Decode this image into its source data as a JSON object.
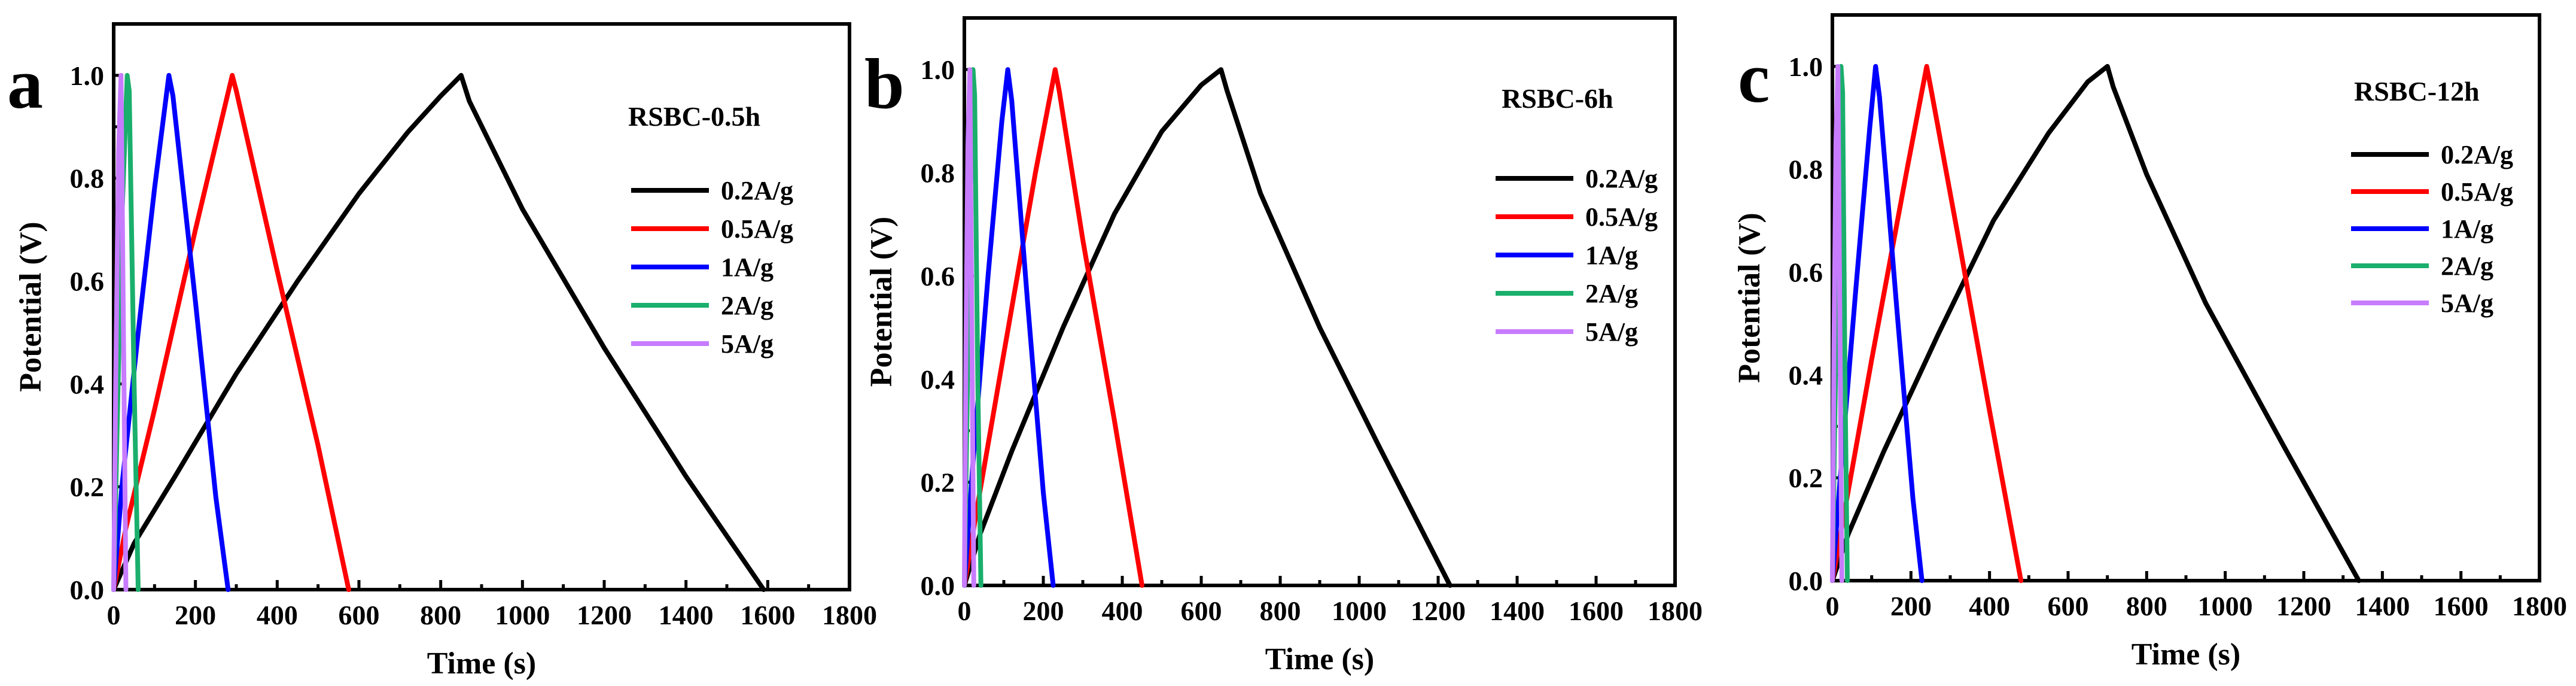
{
  "chart_data": [
    {
      "type": "line",
      "panel_label": "a",
      "sample_label": "RSBC-0.5h",
      "xlabel": "Time (s)",
      "ylabel": "Potential (V)",
      "xlim": [
        0,
        1800
      ],
      "ylim": [
        0,
        1.1
      ],
      "xticks": [
        0,
        200,
        400,
        600,
        800,
        1000,
        1200,
        1400,
        1600,
        1800
      ],
      "yticks": [
        0.0,
        0.2,
        0.4,
        0.6,
        0.8,
        1.0
      ],
      "xtick_labels": [
        "0",
        "200",
        "400",
        "600",
        "800",
        "1000",
        "1200",
        "1400",
        "1600",
        "1800"
      ],
      "ytick_labels": [
        "0.0",
        "0.2",
        "0.4",
        "0.6",
        "0.8",
        "1.0"
      ],
      "legend_position": "right",
      "series": [
        {
          "name": "0.2A/g",
          "color": "#000000",
          "x": [
            0,
            50,
            150,
            300,
            450,
            600,
            720,
            800,
            850,
            870,
            1000,
            1200,
            1400,
            1590
          ],
          "y": [
            0.0,
            0.09,
            0.22,
            0.42,
            0.6,
            0.77,
            0.89,
            0.96,
            1.0,
            0.95,
            0.74,
            0.47,
            0.22,
            0.0
          ]
        },
        {
          "name": "0.5A/g",
          "color": "#ff0000",
          "x": [
            0,
            30,
            100,
            200,
            290,
            300,
            400,
            500,
            575
          ],
          "y": [
            0.0,
            0.12,
            0.35,
            0.7,
            1.0,
            0.97,
            0.62,
            0.28,
            0.0
          ]
        },
        {
          "name": "1A/g",
          "color": "#0000ff",
          "x": [
            0,
            20,
            60,
            100,
            135,
            145,
            200,
            250,
            280
          ],
          "y": [
            0.0,
            0.2,
            0.5,
            0.78,
            1.0,
            0.96,
            0.56,
            0.18,
            0.0
          ]
        },
        {
          "name": "2A/g",
          "color": "#1aaf6c",
          "x": [
            0,
            8,
            20,
            33,
            38,
            50,
            60
          ],
          "y": [
            0.0,
            0.3,
            0.72,
            1.0,
            0.97,
            0.4,
            0.0
          ]
        },
        {
          "name": "5A/g",
          "color": "#c77cff",
          "x": [
            0,
            5,
            12,
            18,
            24,
            30
          ],
          "y": [
            0.0,
            0.4,
            0.85,
            1.0,
            0.5,
            0.0
          ]
        }
      ]
    },
    {
      "type": "line",
      "panel_label": "b",
      "sample_label": "RSBC-6h",
      "xlabel": "Time (s)",
      "ylabel": "Potential (V)",
      "xlim": [
        0,
        1800
      ],
      "ylim": [
        0,
        1.1
      ],
      "xticks": [
        0,
        200,
        400,
        600,
        800,
        1000,
        1200,
        1400,
        1600,
        1800
      ],
      "yticks": [
        0.0,
        0.2,
        0.4,
        0.6,
        0.8,
        1.0
      ],
      "xtick_labels": [
        "0",
        "200",
        "400",
        "600",
        "800",
        "1000",
        "1200",
        "1400",
        "1600",
        "1800"
      ],
      "ytick_labels": [
        "0.0",
        "0.2",
        "0.4",
        "0.6",
        "0.8",
        "1.0"
      ],
      "legend_position": "right",
      "series": [
        {
          "name": "0.2A/g",
          "color": "#000000",
          "x": [
            0,
            40,
            120,
            250,
            380,
            500,
            600,
            650,
            665,
            750,
            900,
            1050,
            1230
          ],
          "y": [
            0.0,
            0.1,
            0.26,
            0.5,
            0.72,
            0.88,
            0.97,
            1.0,
            0.96,
            0.76,
            0.5,
            0.27,
            0.0
          ]
        },
        {
          "name": "0.5A/g",
          "color": "#ff0000",
          "x": [
            0,
            30,
            100,
            180,
            230,
            240,
            300,
            380,
            450
          ],
          "y": [
            0.0,
            0.14,
            0.45,
            0.8,
            1.0,
            0.96,
            0.67,
            0.32,
            0.0
          ]
        },
        {
          "name": "1A/g",
          "color": "#0000ff",
          "x": [
            0,
            20,
            60,
            95,
            110,
            120,
            160,
            200,
            225
          ],
          "y": [
            0.0,
            0.22,
            0.6,
            0.9,
            1.0,
            0.94,
            0.55,
            0.18,
            0.0
          ]
        },
        {
          "name": "2A/g",
          "color": "#1aaf6c",
          "x": [
            0,
            6,
            14,
            22,
            26,
            34,
            42
          ],
          "y": [
            0.0,
            0.3,
            0.7,
            1.0,
            0.95,
            0.4,
            0.0
          ]
        },
        {
          "name": "5A/g",
          "color": "#c77cff",
          "x": [
            0,
            4,
            9,
            14,
            19,
            24
          ],
          "y": [
            0.0,
            0.45,
            0.85,
            1.0,
            0.5,
            0.0
          ]
        }
      ]
    },
    {
      "type": "line",
      "panel_label": "c",
      "sample_label": "RSBC-12h",
      "xlabel": "Time (s)",
      "ylabel": "Potential (V)",
      "xlim": [
        0,
        1800
      ],
      "ylim": [
        0,
        1.1
      ],
      "xticks": [
        0,
        200,
        400,
        600,
        800,
        1000,
        1200,
        1400,
        1600,
        1800
      ],
      "yticks": [
        0.0,
        0.2,
        0.4,
        0.6,
        0.8,
        1.0
      ],
      "xtick_labels": [
        "0",
        "200",
        "400",
        "600",
        "800",
        "1000",
        "1200",
        "1400",
        "1600",
        "1800"
      ],
      "ytick_labels": [
        "0.0",
        "0.2",
        "0.4",
        "0.6",
        "0.8",
        "1.0"
      ],
      "legend_position": "right",
      "series": [
        {
          "name": "0.2A/g",
          "color": "#000000",
          "x": [
            0,
            40,
            130,
            270,
            410,
            550,
            650,
            700,
            715,
            800,
            950,
            1150,
            1340
          ],
          "y": [
            0.0,
            0.09,
            0.25,
            0.48,
            0.7,
            0.87,
            0.97,
            1.0,
            0.96,
            0.79,
            0.54,
            0.26,
            0.0
          ]
        },
        {
          "name": "0.5A/g",
          "color": "#ff0000",
          "x": [
            0,
            30,
            100,
            190,
            240,
            250,
            320,
            400,
            480
          ],
          "y": [
            0.0,
            0.13,
            0.43,
            0.8,
            1.0,
            0.96,
            0.67,
            0.33,
            0.0
          ]
        },
        {
          "name": "1A/g",
          "color": "#0000ff",
          "x": [
            0,
            20,
            60,
            95,
            110,
            120,
            165,
            205,
            228
          ],
          "y": [
            0.0,
            0.2,
            0.57,
            0.88,
            1.0,
            0.94,
            0.52,
            0.16,
            0.0
          ]
        },
        {
          "name": "2A/g",
          "color": "#1aaf6c",
          "x": [
            0,
            6,
            14,
            22,
            26,
            32,
            38
          ],
          "y": [
            0.0,
            0.3,
            0.7,
            1.0,
            0.95,
            0.4,
            0.0
          ]
        },
        {
          "name": "5A/g",
          "color": "#c77cff",
          "x": [
            0,
            4,
            9,
            14,
            19,
            24
          ],
          "y": [
            0.0,
            0.45,
            0.85,
            1.0,
            0.5,
            0.0
          ]
        }
      ]
    }
  ]
}
